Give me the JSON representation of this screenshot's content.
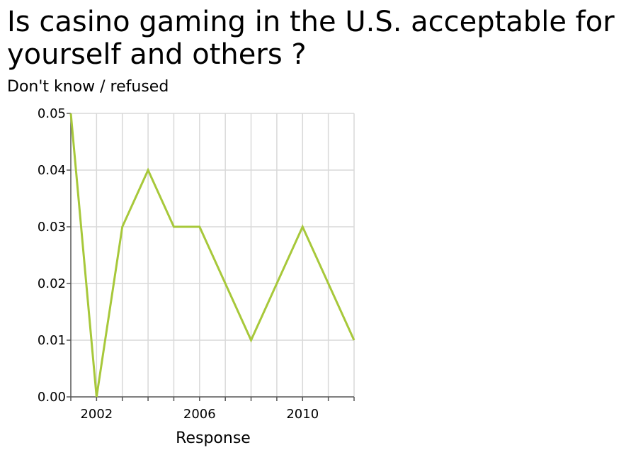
{
  "chart_data": {
    "type": "line",
    "title": "Is casino gaming in the U.S. acceptable for yourself and others ?",
    "ylabel": "Don't know / refused",
    "xlabel": "Response",
    "x": [
      2001,
      2002,
      2003,
      2004,
      2005,
      2006,
      2007,
      2008,
      2009,
      2010,
      2011,
      2012
    ],
    "series": [
      {
        "values": [
          0.05,
          0.0,
          0.03,
          0.04,
          0.03,
          0.03,
          0.02,
          0.01,
          0.02,
          0.03,
          0.02,
          0.01
        ]
      }
    ],
    "xlim": [
      2001,
      2012
    ],
    "ylim": [
      0,
      0.05
    ],
    "x_tick_values": [
      2002,
      2006,
      2010
    ],
    "x_tick_labels": [
      "2002",
      "2006",
      "2010"
    ],
    "x_minor_ticks": [
      2001,
      2003,
      2004,
      2005,
      2007,
      2008,
      2009,
      2011,
      2012
    ],
    "y_tick_values": [
      0,
      0.01,
      0.02,
      0.03,
      0.04,
      0.05
    ],
    "y_tick_labels": [
      "0.00",
      "0.01",
      "0.02",
      "0.03",
      "0.04",
      "0.05"
    ],
    "grid": true,
    "line_color": "#a7c83a",
    "grid_color": "#d9d9d9",
    "axis_color": "#555555"
  }
}
